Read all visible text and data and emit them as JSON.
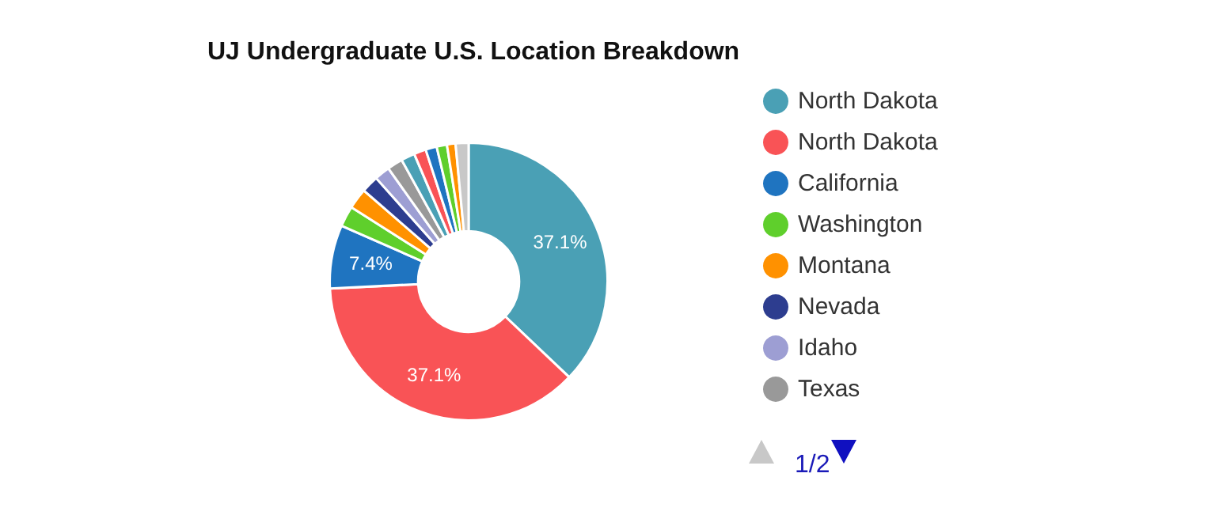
{
  "chart_data": {
    "type": "donut",
    "title": "UJ Undergraduate U.S. Location Breakdown",
    "categories": [
      "North Dakota",
      "North Dakota",
      "California",
      "Washington",
      "Montana",
      "Nevada",
      "Idaho",
      "Texas",
      null,
      null,
      null,
      null,
      null,
      null
    ],
    "values": [
      37.1,
      37.1,
      7.4,
      2.4,
      2.4,
      2.0,
      1.8,
      1.8,
      1.6,
      1.4,
      1.3,
      1.2,
      1.0,
      1.5
    ],
    "colors": [
      "#4aa0b5",
      "#f95356",
      "#1f74c0",
      "#5fcf2c",
      "#ff9100",
      "#2d3d8f",
      "#9d9ed3",
      "#999999",
      "#4aa0b5",
      "#f95356",
      "#1f74c0",
      "#5fcf2c",
      "#ff9100",
      "#c8c8c8"
    ],
    "value_labels": [
      "37.1%",
      "37.1%",
      "7.4%",
      null,
      null,
      null,
      null,
      null,
      null,
      null,
      null,
      null,
      null,
      null
    ],
    "legend": "right",
    "annotations": [
      "1/2"
    ]
  }
}
